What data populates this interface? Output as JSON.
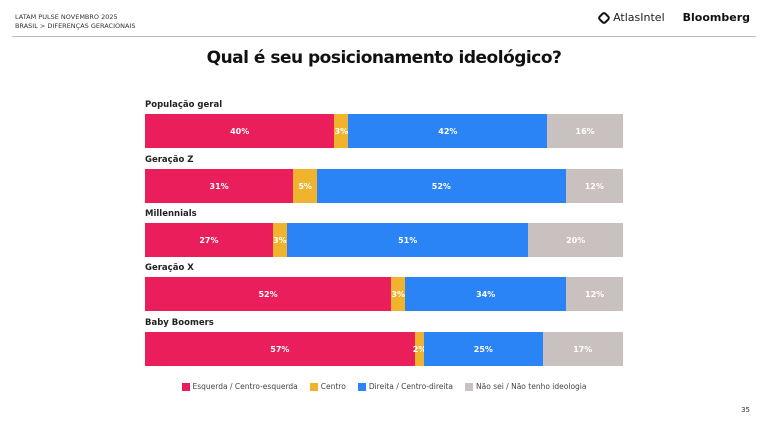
{
  "header": {
    "line1": "LATAM PULSE NOVEMBRO 2025",
    "line2": "BRASIL > DIFERENÇAS GERACIONAIS",
    "logo_atlas": "AtlasIntel",
    "logo_bloomberg": "Bloomberg"
  },
  "page_number": "35",
  "chart_data": {
    "type": "bar",
    "orientation": "horizontal-stacked-100",
    "title": "Qual é seu posicionamento ideológico?",
    "categories": [
      "População geral",
      "Geração Z",
      "Millennials",
      "Geração X",
      "Baby Boomers"
    ],
    "series": [
      {
        "name": "Esquerda / Centro-esquerda",
        "color": "#e91e5a",
        "values": [
          40,
          31,
          27,
          52,
          57
        ]
      },
      {
        "name": "Centro",
        "color": "#f0b32e",
        "values": [
          3,
          5,
          3,
          3,
          2
        ]
      },
      {
        "name": "Direita / Centro-direita",
        "color": "#2a84f5",
        "values": [
          42,
          52,
          51,
          34,
          25
        ]
      },
      {
        "name": "Não sei / Não tenho ideologia",
        "color": "#c9c1bf",
        "values": [
          16,
          12,
          20,
          12,
          17
        ]
      }
    ],
    "unit": "%",
    "legend": "bottom"
  }
}
